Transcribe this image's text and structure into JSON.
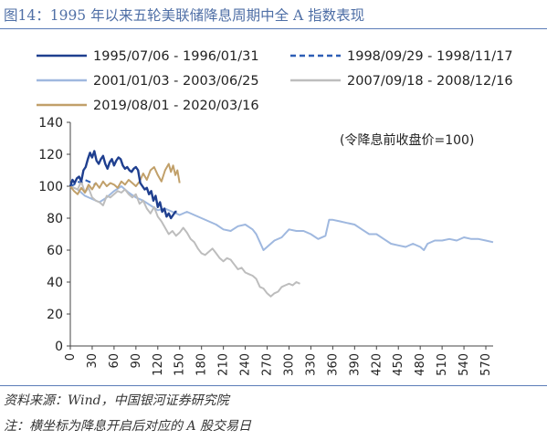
{
  "figure": {
    "title": "图14：1995 年以来五轮美联储降息周期中全 A 指数表现",
    "source": "资料来源：Wind，中国银河证券研究院",
    "note": "注：横坐标为降息开启后对应的 A 股交易日"
  },
  "chart_data": {
    "type": "line",
    "title": "",
    "annotation": "(令降息前收盘价=100)",
    "xlabel": "",
    "ylabel": "",
    "xlim": [
      0,
      580
    ],
    "ylim": [
      0,
      140
    ],
    "x_ticks": [
      "0",
      "30",
      "60",
      "90",
      "120",
      "150",
      "180",
      "210",
      "240",
      "270",
      "300",
      "330",
      "360",
      "390",
      "420",
      "450",
      "480",
      "510",
      "540",
      "570"
    ],
    "y_ticks": [
      "0",
      "20",
      "40",
      "60",
      "80",
      "100",
      "120",
      "140"
    ],
    "grid": false,
    "legend_position": "top",
    "series": [
      {
        "name": "1995/07/06 - 1996/01/31",
        "color": "#1f3f8f",
        "dash": "solid",
        "points": [
          [
            0,
            100
          ],
          [
            3,
            104
          ],
          [
            6,
            102
          ],
          [
            9,
            105
          ],
          [
            12,
            106
          ],
          [
            15,
            103
          ],
          [
            18,
            110
          ],
          [
            21,
            112
          ],
          [
            24,
            117
          ],
          [
            27,
            121
          ],
          [
            30,
            118
          ],
          [
            33,
            122
          ],
          [
            36,
            116
          ],
          [
            39,
            114
          ],
          [
            42,
            117
          ],
          [
            45,
            119
          ],
          [
            48,
            114
          ],
          [
            51,
            111
          ],
          [
            54,
            115
          ],
          [
            57,
            117
          ],
          [
            60,
            113
          ],
          [
            63,
            116
          ],
          [
            66,
            118
          ],
          [
            69,
            117
          ],
          [
            72,
            113
          ],
          [
            75,
            111
          ],
          [
            78,
            112
          ],
          [
            81,
            110
          ],
          [
            84,
            109
          ],
          [
            87,
            111
          ],
          [
            90,
            112
          ],
          [
            93,
            110
          ],
          [
            96,
            102
          ],
          [
            99,
            100
          ],
          [
            102,
            98
          ],
          [
            105,
            99
          ],
          [
            108,
            95
          ],
          [
            111,
            97
          ],
          [
            114,
            91
          ],
          [
            117,
            94
          ],
          [
            120,
            87
          ],
          [
            123,
            90
          ],
          [
            126,
            84
          ],
          [
            129,
            86
          ],
          [
            132,
            81
          ],
          [
            135,
            83
          ],
          [
            138,
            80
          ],
          [
            141,
            82
          ],
          [
            144,
            84
          ],
          [
            146,
            84
          ]
        ]
      },
      {
        "name": "1998/09/29 - 1998/11/17",
        "color": "#2e5fb6",
        "dash": "dashed",
        "points": [
          [
            0,
            100
          ],
          [
            5,
            101
          ],
          [
            10,
            103
          ],
          [
            15,
            102
          ],
          [
            20,
            104
          ],
          [
            25,
            103
          ],
          [
            30,
            102
          ],
          [
            34,
            101
          ]
        ]
      },
      {
        "name": "2001/01/03 - 2003/06/25",
        "color": "#9fb8df",
        "dash": "solid",
        "points": [
          [
            0,
            100
          ],
          [
            10,
            98
          ],
          [
            20,
            94
          ],
          [
            30,
            92
          ],
          [
            40,
            90
          ],
          [
            50,
            93
          ],
          [
            60,
            97
          ],
          [
            70,
            100
          ],
          [
            80,
            96
          ],
          [
            90,
            93
          ],
          [
            100,
            91
          ],
          [
            110,
            88
          ],
          [
            120,
            85
          ],
          [
            130,
            86
          ],
          [
            140,
            84
          ],
          [
            150,
            82
          ],
          [
            160,
            84
          ],
          [
            170,
            82
          ],
          [
            180,
            80
          ],
          [
            190,
            78
          ],
          [
            200,
            76
          ],
          [
            210,
            73
          ],
          [
            220,
            72
          ],
          [
            230,
            75
          ],
          [
            240,
            76
          ],
          [
            250,
            73
          ],
          [
            255,
            70
          ],
          [
            260,
            65
          ],
          [
            265,
            60
          ],
          [
            270,
            62
          ],
          [
            280,
            66
          ],
          [
            290,
            68
          ],
          [
            300,
            73
          ],
          [
            310,
            72
          ],
          [
            320,
            72
          ],
          [
            330,
            70
          ],
          [
            340,
            67
          ],
          [
            350,
            69
          ],
          [
            355,
            79
          ],
          [
            360,
            79
          ],
          [
            370,
            78
          ],
          [
            380,
            77
          ],
          [
            390,
            76
          ],
          [
            400,
            73
          ],
          [
            410,
            70
          ],
          [
            420,
            70
          ],
          [
            430,
            67
          ],
          [
            440,
            64
          ],
          [
            450,
            63
          ],
          [
            460,
            62
          ],
          [
            470,
            64
          ],
          [
            480,
            62
          ],
          [
            485,
            60
          ],
          [
            490,
            64
          ],
          [
            500,
            66
          ],
          [
            510,
            66
          ],
          [
            520,
            67
          ],
          [
            530,
            66
          ],
          [
            540,
            68
          ],
          [
            550,
            67
          ],
          [
            560,
            67
          ],
          [
            570,
            66
          ],
          [
            580,
            65
          ]
        ]
      },
      {
        "name": "2007/09/18 - 2008/12/16",
        "color": "#bdbdbd",
        "dash": "solid",
        "points": [
          [
            0,
            100
          ],
          [
            10,
            98
          ],
          [
            15,
            103
          ],
          [
            20,
            96
          ],
          [
            25,
            99
          ],
          [
            30,
            93
          ],
          [
            35,
            91
          ],
          [
            40,
            90
          ],
          [
            45,
            88
          ],
          [
            50,
            94
          ],
          [
            55,
            93
          ],
          [
            60,
            95
          ],
          [
            65,
            97
          ],
          [
            70,
            96
          ],
          [
            75,
            98
          ],
          [
            80,
            95
          ],
          [
            85,
            93
          ],
          [
            90,
            95
          ],
          [
            95,
            89
          ],
          [
            100,
            91
          ],
          [
            105,
            86
          ],
          [
            110,
            83
          ],
          [
            115,
            87
          ],
          [
            120,
            81
          ],
          [
            125,
            78
          ],
          [
            130,
            74
          ],
          [
            135,
            70
          ],
          [
            140,
            72
          ],
          [
            145,
            69
          ],
          [
            150,
            71
          ],
          [
            155,
            74
          ],
          [
            160,
            71
          ],
          [
            165,
            67
          ],
          [
            170,
            65
          ],
          [
            175,
            61
          ],
          [
            180,
            58
          ],
          [
            185,
            57
          ],
          [
            190,
            59
          ],
          [
            195,
            61
          ],
          [
            200,
            58
          ],
          [
            205,
            55
          ],
          [
            210,
            53
          ],
          [
            215,
            55
          ],
          [
            220,
            54
          ],
          [
            225,
            51
          ],
          [
            230,
            48
          ],
          [
            235,
            49
          ],
          [
            240,
            46
          ],
          [
            245,
            45
          ],
          [
            250,
            44
          ],
          [
            255,
            42
          ],
          [
            260,
            37
          ],
          [
            265,
            36
          ],
          [
            270,
            33
          ],
          [
            275,
            31
          ],
          [
            280,
            33
          ],
          [
            285,
            34
          ],
          [
            290,
            37
          ],
          [
            295,
            38
          ],
          [
            300,
            39
          ],
          [
            305,
            38
          ],
          [
            310,
            40
          ],
          [
            315,
            39
          ]
        ]
      },
      {
        "name": "2019/08/01 - 2020/03/16",
        "color": "#c1a06a",
        "dash": "solid",
        "points": [
          [
            0,
            100
          ],
          [
            5,
            97
          ],
          [
            10,
            95
          ],
          [
            15,
            99
          ],
          [
            20,
            96
          ],
          [
            25,
            101
          ],
          [
            30,
            98
          ],
          [
            35,
            102
          ],
          [
            40,
            99
          ],
          [
            45,
            103
          ],
          [
            50,
            100
          ],
          [
            55,
            102
          ],
          [
            60,
            101
          ],
          [
            65,
            99
          ],
          [
            70,
            103
          ],
          [
            75,
            101
          ],
          [
            80,
            104
          ],
          [
            85,
            102
          ],
          [
            90,
            100
          ],
          [
            95,
            103
          ],
          [
            100,
            108
          ],
          [
            105,
            104
          ],
          [
            110,
            110
          ],
          [
            115,
            112
          ],
          [
            120,
            107
          ],
          [
            125,
            103
          ],
          [
            130,
            110
          ],
          [
            135,
            114
          ],
          [
            138,
            109
          ],
          [
            141,
            113
          ],
          [
            144,
            107
          ],
          [
            147,
            110
          ],
          [
            150,
            102
          ]
        ]
      }
    ]
  }
}
